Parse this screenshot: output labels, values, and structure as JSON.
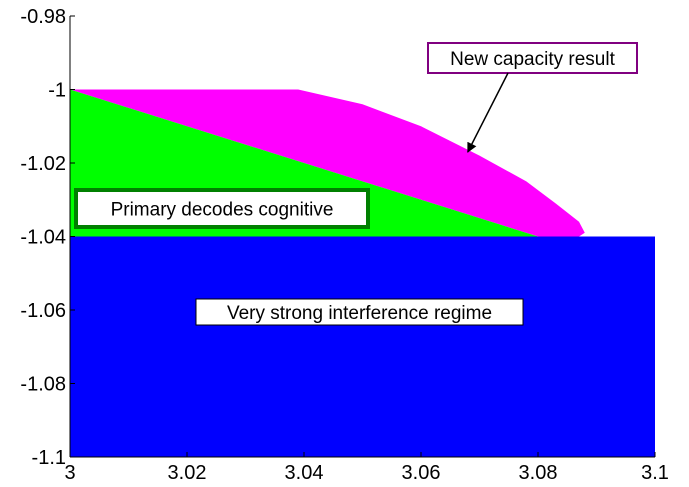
{
  "chart_data": {
    "type": "area",
    "xlim": [
      3,
      3.1
    ],
    "ylim": [
      -1.1,
      -0.98
    ],
    "xticks": [
      "3",
      "3.02",
      "3.04",
      "3.06",
      "3.08",
      "3.1"
    ],
    "yticks": [
      "-0.98",
      "-1",
      "-1.02",
      "-1.04",
      "-1.06",
      "-1.08",
      "-1.1"
    ],
    "grid": false,
    "regions": [
      {
        "name": "New capacity result",
        "color": "#ff00ff",
        "points": [
          [
            3.0,
            -1.0
          ],
          [
            3.039,
            -1.0
          ],
          [
            3.05,
            -1.004
          ],
          [
            3.06,
            -1.01
          ],
          [
            3.07,
            -1.018
          ],
          [
            3.078,
            -1.025
          ],
          [
            3.083,
            -1.031
          ],
          [
            3.087,
            -1.036
          ],
          [
            3.088,
            -1.039
          ],
          [
            3.087,
            -1.04
          ],
          [
            3.08,
            -1.04
          ]
        ]
      },
      {
        "name": "Primary decodes cognitive",
        "color": "#00ff00",
        "points": [
          [
            3.0,
            -1.0
          ],
          [
            3.08,
            -1.04
          ],
          [
            3.0,
            -1.04
          ]
        ]
      },
      {
        "name": "Very strong interference regime",
        "color": "#0000ff",
        "points": [
          [
            3.0,
            -1.04
          ],
          [
            3.1,
            -1.04
          ],
          [
            3.1,
            -1.1
          ],
          [
            3.0,
            -1.1
          ]
        ]
      }
    ],
    "annotations": [
      {
        "text": "New capacity result",
        "border": "#800080",
        "arrow_to": [
          3.068,
          -1.017
        ]
      },
      {
        "text": "Primary decodes cognitive",
        "border": "#008000"
      },
      {
        "text": "Very strong interference regime",
        "border": "#000000"
      }
    ]
  }
}
